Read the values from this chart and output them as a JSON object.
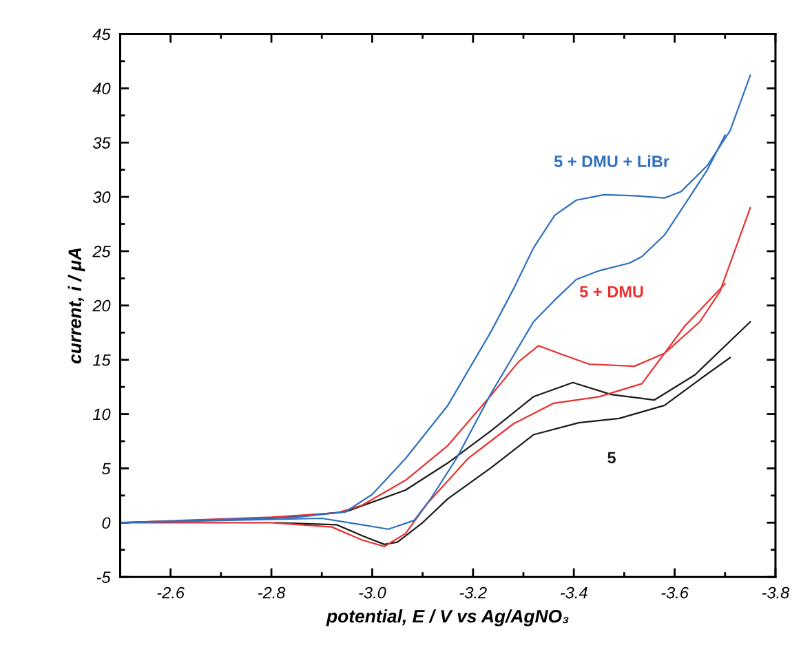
{
  "chart_data": {
    "type": "line",
    "xlabel": "potential, E / V vs Ag/AgNO₃",
    "ylabel": "current, i / μA",
    "xlim": [
      -2.5,
      -3.8
    ],
    "ylim": [
      -5,
      45
    ],
    "xticks": [
      -2.6,
      -2.8,
      {
        "value": -3.0,
        "label": "-3.0"
      },
      -3.2,
      -3.4,
      -3.6,
      -3.8
    ],
    "yticks": [
      -5,
      0,
      5,
      10,
      15,
      20,
      25,
      30,
      35,
      40,
      45
    ],
    "grid": false,
    "legend": false,
    "marker": "none",
    "line_style": "solid",
    "series": [
      {
        "name": "5",
        "color": "#1a1a1a",
        "x": [
          -2.5,
          -2.8,
          -2.947,
          -3.066,
          -3.15,
          -3.237,
          -3.32,
          -3.398,
          -3.474,
          -3.56,
          -3.64,
          -3.75
        ],
        "values": [
          0,
          0.4,
          1.0,
          3.0,
          5.5,
          8.5,
          11.6,
          12.9,
          11.8,
          11.3,
          13.6,
          18.5
        ]
      },
      {
        "color": "#1a1a1a",
        "x": [
          -3.71,
          -3.65,
          -3.58,
          -3.49,
          -3.41,
          -3.32,
          -3.237,
          -3.15,
          -3.1,
          -3.05,
          -3.024,
          -2.98,
          -2.93,
          -2.81
        ],
        "values": [
          15.2,
          13.2,
          10.8,
          9.6,
          9.2,
          8.1,
          5.1,
          2.2,
          0,
          -1.8,
          -2.0,
          -1.2,
          -0.2,
          0
        ]
      },
      {
        "name": "5 + DMU",
        "color": "#e8312f",
        "x": [
          -2.5,
          -2.8,
          -2.93,
          -2.98,
          -3.066,
          -3.15,
          -3.237,
          -3.29,
          -3.33,
          -3.37,
          -3.43,
          -3.52,
          -3.58,
          -3.65,
          -3.69,
          -3.75
        ],
        "values": [
          0,
          0.5,
          0.9,
          1.6,
          3.9,
          7.1,
          11.8,
          14.8,
          16.3,
          15.6,
          14.6,
          14.4,
          15.6,
          18.5,
          21.3,
          29
        ]
      },
      {
        "color": "#e8312f",
        "x": [
          -3.7,
          -3.62,
          -3.535,
          -3.45,
          -3.36,
          -3.28,
          -3.19,
          -3.11,
          -3.066,
          -3.024,
          -2.98,
          -2.92,
          -2.8,
          -2.5
        ],
        "values": [
          22,
          18.1,
          12.8,
          11.6,
          11.0,
          9.1,
          5.9,
          1.8,
          -1.0,
          -2.2,
          -1.6,
          -0.4,
          0,
          0
        ]
      },
      {
        "name": "5 + DMU + LiBr",
        "color": "#2f6fc0",
        "x": [
          -2.5,
          -2.85,
          -2.947,
          -3.0,
          -3.066,
          -3.15,
          -3.237,
          -3.28,
          -3.32,
          -3.362,
          -3.405,
          -3.46,
          -3.52,
          -3.58,
          -3.613,
          -3.665,
          -3.71,
          -3.75
        ],
        "values": [
          0,
          0.5,
          1.0,
          2.6,
          5.9,
          10.8,
          17.7,
          21.5,
          25.3,
          28.3,
          29.7,
          30.2,
          30.1,
          29.9,
          30.5,
          32.9,
          36.1,
          41.2
        ]
      },
      {
        "color": "#2f6fc0",
        "x": [
          -3.7,
          -3.665,
          -3.62,
          -3.58,
          -3.535,
          -3.51,
          -3.45,
          -3.405,
          -3.362,
          -3.32,
          -3.237,
          -3.167,
          -3.116,
          -3.083,
          -3.032,
          -2.98,
          -2.9,
          -2.5
        ],
        "values": [
          35.7,
          32.5,
          29.3,
          26.5,
          24.5,
          23.9,
          23.2,
          22.4,
          20.5,
          18.5,
          12.0,
          5.9,
          2.2,
          0.2,
          -0.6,
          -0.2,
          0.4,
          0
        ]
      }
    ]
  }
}
